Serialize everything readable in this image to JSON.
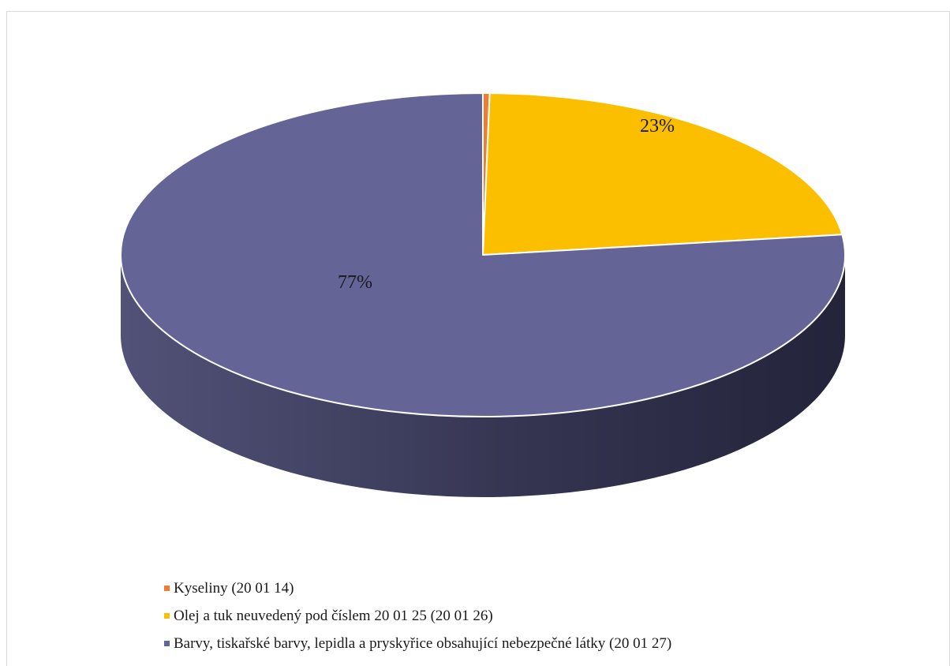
{
  "chart_data": {
    "type": "pie",
    "style": "3d",
    "legend_position": "bottom",
    "slices": [
      {
        "label": "Kyseliny (20 01 14)",
        "value": 0.3,
        "color": "#ed7d31",
        "data_label": ""
      },
      {
        "label": "Olej a tuk neuvedený pod číslem 20 01 25 (20 01 26)",
        "value": 22.7,
        "color": "#fbbf00",
        "data_label": "23%"
      },
      {
        "label": "Barvy, tiskařské barvy, lepidla a pryskyřice obsahující nebezpečné látky (20 01 27)",
        "value": 77.0,
        "color": "#646496",
        "data_label": "77%"
      }
    ]
  }
}
